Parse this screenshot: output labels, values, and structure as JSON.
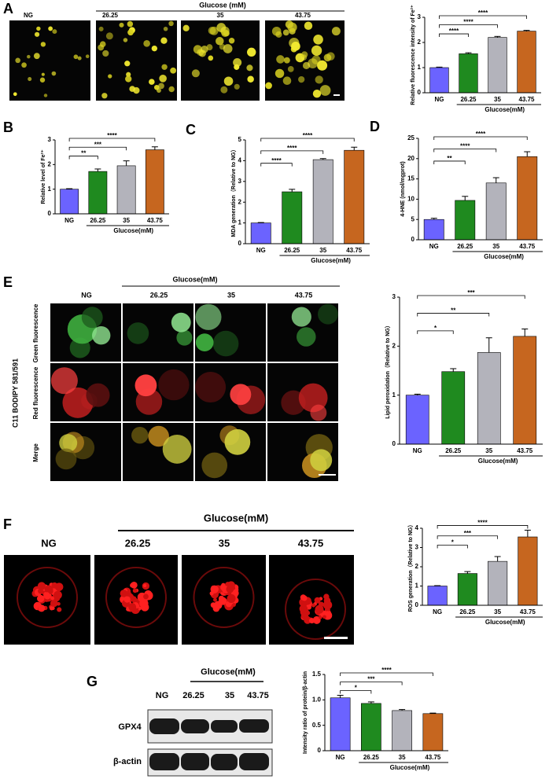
{
  "figure": {
    "panel_letters": [
      "A",
      "B",
      "C",
      "D",
      "E",
      "F",
      "G"
    ],
    "a": {
      "group_label": "Glucose (mM)",
      "columns": [
        "NG",
        "26.25",
        "35",
        "43.75"
      ]
    },
    "e": {
      "group_label": "Glucose(mM)",
      "columns": [
        "NG",
        "26.25",
        "35",
        "43.75"
      ],
      "rows": [
        "Green fluorescence",
        "Red fluorescence",
        "Merge"
      ],
      "stain": "C11 BODIPY 581/591"
    },
    "f": {
      "group_label": "Glucose(mM)",
      "columns": [
        "NG",
        "26.25",
        "35",
        "43.75"
      ]
    },
    "g": {
      "group_label": "Glucose(mM)",
      "columns": [
        "NG",
        "26.25",
        "35",
        "43.75"
      ],
      "rows": [
        "GPX4",
        "β-actin"
      ]
    }
  },
  "chart_data": [
    {
      "type": "bar",
      "ylabel": "Relative fluorescence intensity of Fe²⁺",
      "xlabel": "Glucose(mM)",
      "categories": [
        "NG",
        "26.25",
        "35",
        "43.75"
      ],
      "values": [
        1,
        1.55,
        2.2,
        2.45
      ],
      "errors": [
        0.02,
        0.04,
        0.04,
        0.03
      ],
      "colors": [
        "#6b63ff",
        "#1f8a1f",
        "#b3b3bb",
        "#c6661f"
      ],
      "ylim": [
        0,
        3
      ],
      "yticks": [
        0,
        1,
        2,
        3
      ],
      "significance": [
        "****",
        "****",
        "****"
      ]
    },
    {
      "type": "bar",
      "ylabel": "Relative level of Fe²⁺",
      "xlabel": "Glucose(mM)",
      "categories": [
        "NG",
        "26.25",
        "35",
        "43.75"
      ],
      "values": [
        1,
        1.72,
        1.95,
        2.6
      ],
      "errors": [
        0.02,
        0.1,
        0.2,
        0.12
      ],
      "colors": [
        "#6b63ff",
        "#1f8a1f",
        "#b3b3bb",
        "#c6661f"
      ],
      "ylim": [
        0,
        3
      ],
      "yticks": [
        0,
        1,
        2,
        3
      ],
      "significance": [
        "**",
        "***",
        "****"
      ]
    },
    {
      "type": "bar",
      "ylabel": "MDA generation（Relative to NG）",
      "xlabel": "Glucose(mM)",
      "categories": [
        "NG",
        "26.25",
        "35",
        "43.75"
      ],
      "values": [
        1,
        2.5,
        4.05,
        4.5
      ],
      "errors": [
        0.02,
        0.12,
        0.05,
        0.15
      ],
      "colors": [
        "#6b63ff",
        "#1f8a1f",
        "#b3b3bb",
        "#c6661f"
      ],
      "ylim": [
        0,
        5
      ],
      "yticks": [
        0,
        1,
        2,
        3,
        4,
        5
      ],
      "significance": [
        "****",
        "****",
        "****"
      ]
    },
    {
      "type": "bar",
      "ylabel": "4-HNE (nmol/mgprot)",
      "xlabel": "Glucose(mM)",
      "categories": [
        "NG",
        "26.25",
        "35",
        "43.75"
      ],
      "values": [
        5,
        9.7,
        14,
        20.5
      ],
      "errors": [
        0.3,
        1,
        1.3,
        1.2
      ],
      "colors": [
        "#6b63ff",
        "#1f8a1f",
        "#b3b3bb",
        "#c6661f"
      ],
      "ylim": [
        0,
        25
      ],
      "yticks": [
        0,
        5,
        10,
        15,
        20,
        25
      ],
      "significance": [
        "**",
        "****",
        "****"
      ]
    },
    {
      "type": "bar",
      "ylabel": "Lipid peroxidation（Relative to NG）",
      "xlabel": "Glucose(mM)",
      "categories": [
        "NG",
        "26.25",
        "35",
        "43.75"
      ],
      "values": [
        1,
        1.48,
        1.87,
        2.2
      ],
      "errors": [
        0.02,
        0.06,
        0.3,
        0.15
      ],
      "colors": [
        "#6b63ff",
        "#1f8a1f",
        "#b3b3bb",
        "#c6661f"
      ],
      "ylim": [
        0,
        3
      ],
      "yticks": [
        0,
        1,
        2,
        3
      ],
      "significance": [
        "*",
        "**",
        "***"
      ]
    },
    {
      "type": "bar",
      "ylabel": "ROS generation（Relative to NG）",
      "xlabel": "Glucose(mM)",
      "categories": [
        "NG",
        "26.25",
        "35",
        "43.75"
      ],
      "values": [
        1,
        1.65,
        2.28,
        3.55
      ],
      "errors": [
        0.02,
        0.1,
        0.25,
        0.35
      ],
      "colors": [
        "#6b63ff",
        "#1f8a1f",
        "#b3b3bb",
        "#c6661f"
      ],
      "ylim": [
        0,
        4
      ],
      "yticks": [
        0,
        1,
        2,
        3,
        4
      ],
      "significance": [
        "*",
        "***",
        "****"
      ]
    },
    {
      "type": "bar",
      "ylabel": "Intensity ratio of protein/β-actin",
      "xlabel": "Glucose(mM)",
      "categories": [
        "NG",
        "26.25",
        "35",
        "43.75"
      ],
      "values": [
        1.04,
        0.93,
        0.79,
        0.73
      ],
      "errors": [
        0.05,
        0.03,
        0.02,
        0.01
      ],
      "colors": [
        "#6b63ff",
        "#1f8a1f",
        "#b3b3bb",
        "#c6661f"
      ],
      "ylim": [
        0,
        1.5
      ],
      "yticks": [
        0,
        0.5,
        {
          "value": 1,
          "label": "1.0"
        },
        1.5
      ],
      "significance": [
        "*",
        "***",
        "****"
      ]
    }
  ]
}
